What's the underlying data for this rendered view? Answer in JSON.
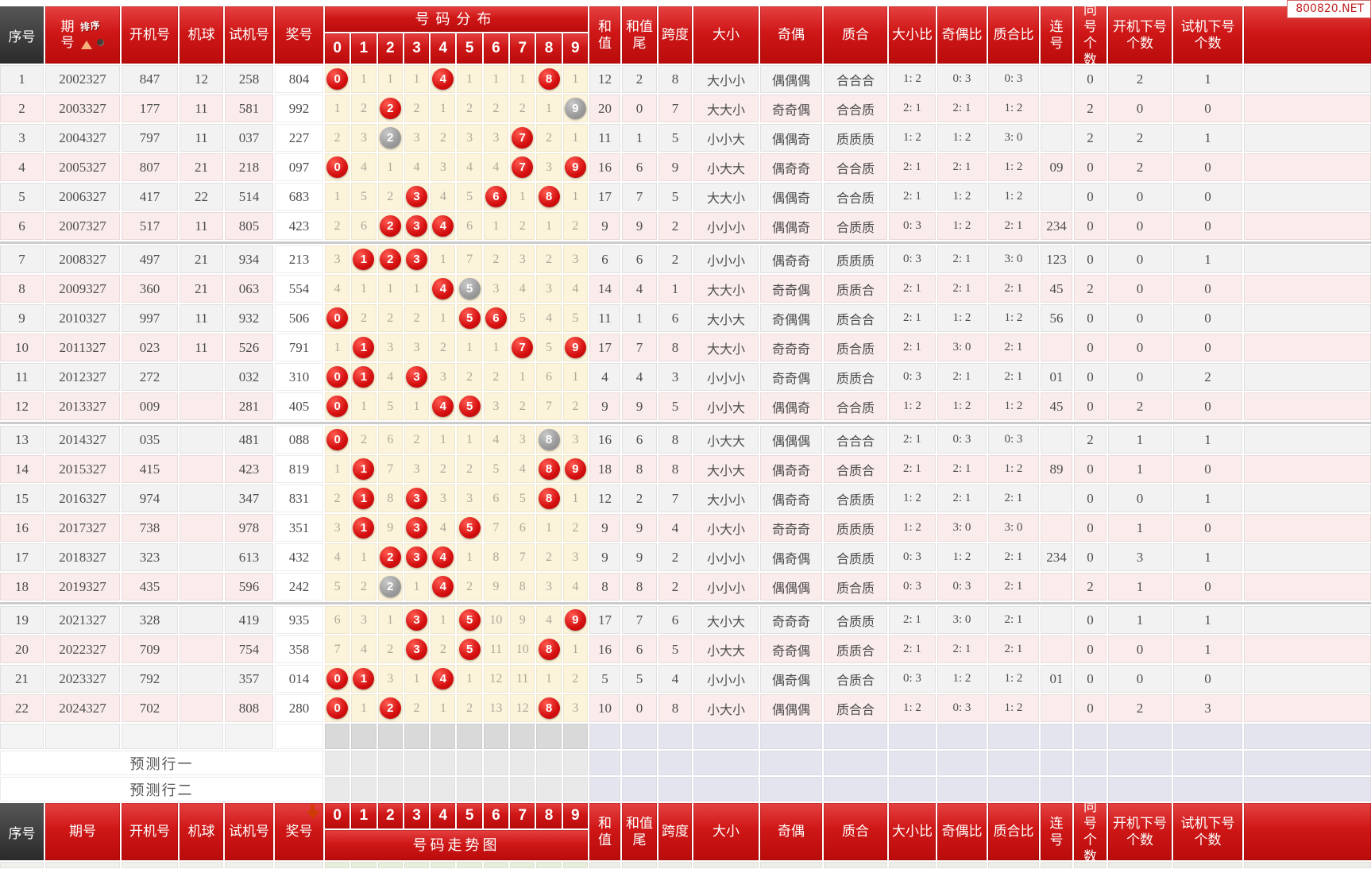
{
  "watermark": "800820.NET",
  "columns": {
    "index": "序号",
    "period": "期号",
    "sort_label": "排序",
    "boot": "开机号",
    "ball": "机球",
    "test": "试机号",
    "prize": "奖号",
    "dist_title": "号码分布",
    "dist_digits": [
      "0",
      "1",
      "2",
      "3",
      "4",
      "5",
      "6",
      "7",
      "8",
      "9"
    ],
    "sum": "和值",
    "sum_tail": "和值尾",
    "span": "跨度",
    "big_small": "大小",
    "odd_even": "奇偶",
    "prime_comp": "质合",
    "bs_ratio": "大小比",
    "oe_ratio": "奇偶比",
    "pc_ratio": "质合比",
    "consecutive": "连号",
    "same_count": "同号个数",
    "boot_next_count": "开机下号个数",
    "test_next_count": "试机下号个数",
    "footer_dist_title": "号码走势图"
  },
  "prediction_rows": [
    "预测行一",
    "预测行二"
  ],
  "rows": [
    {
      "idx": "1",
      "period": "2002327",
      "boot": "847",
      "ball": "12",
      "test": "258",
      "prize": "804",
      "dist": [
        "0",
        "1",
        "1",
        "1",
        "4",
        "1",
        "1",
        "1",
        "8",
        "1"
      ],
      "marks": [
        1,
        0,
        0,
        0,
        1,
        0,
        0,
        0,
        1,
        0
      ],
      "sum": "12",
      "tail": "2",
      "span": "8",
      "bs": "大小小",
      "oe": "偶偶偶",
      "pc": "合合合",
      "bsr": "1: 2",
      "oer": "0: 3",
      "pcr": "0: 3",
      "consec": "",
      "same": "0",
      "bootn": "2",
      "testn": "1"
    },
    {
      "idx": "2",
      "period": "2003327",
      "boot": "177",
      "ball": "11",
      "test": "581",
      "prize": "992",
      "dist": [
        "1",
        "2",
        "2",
        "2",
        "1",
        "2",
        "2",
        "2",
        "1",
        "9"
      ],
      "marks": [
        0,
        0,
        1,
        0,
        0,
        0,
        0,
        0,
        0,
        2
      ],
      "sum": "20",
      "tail": "0",
      "span": "7",
      "bs": "大大小",
      "oe": "奇奇偶",
      "pc": "合合质",
      "bsr": "2: 1",
      "oer": "2: 1",
      "pcr": "1: 2",
      "consec": "",
      "same": "2",
      "bootn": "0",
      "testn": "0"
    },
    {
      "idx": "3",
      "period": "2004327",
      "boot": "797",
      "ball": "11",
      "test": "037",
      "prize": "227",
      "dist": [
        "2",
        "3",
        "2",
        "3",
        "2",
        "3",
        "3",
        "7",
        "2",
        "1"
      ],
      "marks": [
        0,
        0,
        2,
        0,
        0,
        0,
        0,
        1,
        0,
        0
      ],
      "sum": "11",
      "tail": "1",
      "span": "5",
      "bs": "小小大",
      "oe": "偶偶奇",
      "pc": "质质质",
      "bsr": "1: 2",
      "oer": "1: 2",
      "pcr": "3: 0",
      "consec": "",
      "same": "2",
      "bootn": "2",
      "testn": "1"
    },
    {
      "idx": "4",
      "period": "2005327",
      "boot": "807",
      "ball": "21",
      "test": "218",
      "prize": "097",
      "dist": [
        "0",
        "4",
        "1",
        "4",
        "3",
        "4",
        "4",
        "7",
        "3",
        "9"
      ],
      "marks": [
        1,
        0,
        0,
        0,
        0,
        0,
        0,
        1,
        0,
        1
      ],
      "sum": "16",
      "tail": "6",
      "span": "9",
      "bs": "小大大",
      "oe": "偶奇奇",
      "pc": "合合质",
      "bsr": "2: 1",
      "oer": "2: 1",
      "pcr": "1: 2",
      "consec": "09",
      "same": "0",
      "bootn": "2",
      "testn": "0"
    },
    {
      "idx": "5",
      "period": "2006327",
      "boot": "417",
      "ball": "22",
      "test": "514",
      "prize": "683",
      "dist": [
        "1",
        "5",
        "2",
        "3",
        "4",
        "5",
        "6",
        "1",
        "8",
        "1"
      ],
      "marks": [
        0,
        0,
        0,
        1,
        0,
        0,
        1,
        0,
        1,
        0
      ],
      "sum": "17",
      "tail": "7",
      "span": "5",
      "bs": "大大小",
      "oe": "偶偶奇",
      "pc": "合合质",
      "bsr": "2: 1",
      "oer": "1: 2",
      "pcr": "1: 2",
      "consec": "",
      "same": "0",
      "bootn": "0",
      "testn": "0"
    },
    {
      "idx": "6",
      "period": "2007327",
      "boot": "517",
      "ball": "11",
      "test": "805",
      "prize": "423",
      "dist": [
        "2",
        "6",
        "2",
        "3",
        "4",
        "6",
        "1",
        "2",
        "1",
        "2"
      ],
      "marks": [
        0,
        0,
        1,
        1,
        1,
        0,
        0,
        0,
        0,
        0
      ],
      "sum": "9",
      "tail": "9",
      "span": "2",
      "bs": "小小小",
      "oe": "偶偶奇",
      "pc": "合质质",
      "bsr": "0: 3",
      "oer": "1: 2",
      "pcr": "2: 1",
      "consec": "234",
      "same": "0",
      "bootn": "0",
      "testn": "0"
    },
    {
      "idx": "7",
      "period": "2008327",
      "boot": "497",
      "ball": "21",
      "test": "934",
      "prize": "213",
      "dist": [
        "3",
        "1",
        "2",
        "3",
        "1",
        "7",
        "2",
        "3",
        "2",
        "3"
      ],
      "marks": [
        0,
        1,
        1,
        1,
        0,
        0,
        0,
        0,
        0,
        0
      ],
      "sum": "6",
      "tail": "6",
      "span": "2",
      "bs": "小小小",
      "oe": "偶奇奇",
      "pc": "质质质",
      "bsr": "0: 3",
      "oer": "2: 1",
      "pcr": "3: 0",
      "consec": "123",
      "same": "0",
      "bootn": "0",
      "testn": "1"
    },
    {
      "idx": "8",
      "period": "2009327",
      "boot": "360",
      "ball": "21",
      "test": "063",
      "prize": "554",
      "dist": [
        "4",
        "1",
        "1",
        "1",
        "4",
        "5",
        "3",
        "4",
        "3",
        "4"
      ],
      "marks": [
        0,
        0,
        0,
        0,
        1,
        2,
        0,
        0,
        0,
        0
      ],
      "sum": "14",
      "tail": "4",
      "span": "1",
      "bs": "大大小",
      "oe": "奇奇偶",
      "pc": "质质合",
      "bsr": "2: 1",
      "oer": "2: 1",
      "pcr": "2: 1",
      "consec": "45",
      "same": "2",
      "bootn": "0",
      "testn": "0"
    },
    {
      "idx": "9",
      "period": "2010327",
      "boot": "997",
      "ball": "11",
      "test": "932",
      "prize": "506",
      "dist": [
        "0",
        "2",
        "2",
        "2",
        "1",
        "5",
        "6",
        "5",
        "4",
        "5"
      ],
      "marks": [
        1,
        0,
        0,
        0,
        0,
        1,
        1,
        0,
        0,
        0
      ],
      "sum": "11",
      "tail": "1",
      "span": "6",
      "bs": "大小大",
      "oe": "奇偶偶",
      "pc": "质合合",
      "bsr": "2: 1",
      "oer": "1: 2",
      "pcr": "1: 2",
      "consec": "56",
      "same": "0",
      "bootn": "0",
      "testn": "0"
    },
    {
      "idx": "10",
      "period": "2011327",
      "boot": "023",
      "ball": "11",
      "test": "526",
      "prize": "791",
      "dist": [
        "1",
        "1",
        "3",
        "3",
        "2",
        "1",
        "1",
        "7",
        "5",
        "9"
      ],
      "marks": [
        0,
        1,
        0,
        0,
        0,
        0,
        0,
        1,
        0,
        1
      ],
      "sum": "17",
      "tail": "7",
      "span": "8",
      "bs": "大大小",
      "oe": "奇奇奇",
      "pc": "质合质",
      "bsr": "2: 1",
      "oer": "3: 0",
      "pcr": "2: 1",
      "consec": "",
      "same": "0",
      "bootn": "0",
      "testn": "0"
    },
    {
      "idx": "11",
      "period": "2012327",
      "boot": "272",
      "ball": "",
      "test": "032",
      "prize": "310",
      "dist": [
        "0",
        "1",
        "4",
        "3",
        "3",
        "2",
        "2",
        "1",
        "6",
        "1"
      ],
      "marks": [
        1,
        1,
        0,
        1,
        0,
        0,
        0,
        0,
        0,
        0
      ],
      "sum": "4",
      "tail": "4",
      "span": "3",
      "bs": "小小小",
      "oe": "奇奇偶",
      "pc": "质质合",
      "bsr": "0: 3",
      "oer": "2: 1",
      "pcr": "2: 1",
      "consec": "01",
      "same": "0",
      "bootn": "0",
      "testn": "2"
    },
    {
      "idx": "12",
      "period": "2013327",
      "boot": "009",
      "ball": "",
      "test": "281",
      "prize": "405",
      "dist": [
        "0",
        "1",
        "5",
        "1",
        "4",
        "5",
        "3",
        "2",
        "7",
        "2"
      ],
      "marks": [
        1,
        0,
        0,
        0,
        1,
        1,
        0,
        0,
        0,
        0
      ],
      "sum": "9",
      "tail": "9",
      "span": "5",
      "bs": "小小大",
      "oe": "偶偶奇",
      "pc": "合合质",
      "bsr": "1: 2",
      "oer": "1: 2",
      "pcr": "1: 2",
      "consec": "45",
      "same": "0",
      "bootn": "2",
      "testn": "0"
    },
    {
      "idx": "13",
      "period": "2014327",
      "boot": "035",
      "ball": "",
      "test": "481",
      "prize": "088",
      "dist": [
        "0",
        "2",
        "6",
        "2",
        "1",
        "1",
        "4",
        "3",
        "8",
        "3"
      ],
      "marks": [
        1,
        0,
        0,
        0,
        0,
        0,
        0,
        0,
        2,
        0
      ],
      "sum": "16",
      "tail": "6",
      "span": "8",
      "bs": "小大大",
      "oe": "偶偶偶",
      "pc": "合合合",
      "bsr": "2: 1",
      "oer": "0: 3",
      "pcr": "0: 3",
      "consec": "",
      "same": "2",
      "bootn": "1",
      "testn": "1"
    },
    {
      "idx": "14",
      "period": "2015327",
      "boot": "415",
      "ball": "",
      "test": "423",
      "prize": "819",
      "dist": [
        "1",
        "1",
        "7",
        "3",
        "2",
        "2",
        "5",
        "4",
        "8",
        "9"
      ],
      "marks": [
        0,
        1,
        0,
        0,
        0,
        0,
        0,
        0,
        1,
        1
      ],
      "sum": "18",
      "tail": "8",
      "span": "8",
      "bs": "大小大",
      "oe": "偶奇奇",
      "pc": "合质合",
      "bsr": "2: 1",
      "oer": "2: 1",
      "pcr": "1: 2",
      "consec": "89",
      "same": "0",
      "bootn": "1",
      "testn": "0"
    },
    {
      "idx": "15",
      "period": "2016327",
      "boot": "974",
      "ball": "",
      "test": "347",
      "prize": "831",
      "dist": [
        "2",
        "1",
        "8",
        "3",
        "3",
        "3",
        "6",
        "5",
        "8",
        "1"
      ],
      "marks": [
        0,
        1,
        0,
        1,
        0,
        0,
        0,
        0,
        1,
        0
      ],
      "sum": "12",
      "tail": "2",
      "span": "7",
      "bs": "大小小",
      "oe": "偶奇奇",
      "pc": "合质质",
      "bsr": "1: 2",
      "oer": "2: 1",
      "pcr": "2: 1",
      "consec": "",
      "same": "0",
      "bootn": "0",
      "testn": "1"
    },
    {
      "idx": "16",
      "period": "2017327",
      "boot": "738",
      "ball": "",
      "test": "978",
      "prize": "351",
      "dist": [
        "3",
        "1",
        "9",
        "3",
        "4",
        "5",
        "7",
        "6",
        "1",
        "2"
      ],
      "marks": [
        0,
        1,
        0,
        1,
        0,
        1,
        0,
        0,
        0,
        0
      ],
      "sum": "9",
      "tail": "9",
      "span": "4",
      "bs": "小大小",
      "oe": "奇奇奇",
      "pc": "质质质",
      "bsr": "1: 2",
      "oer": "3: 0",
      "pcr": "3: 0",
      "consec": "",
      "same": "0",
      "bootn": "1",
      "testn": "0"
    },
    {
      "idx": "17",
      "period": "2018327",
      "boot": "323",
      "ball": "",
      "test": "613",
      "prize": "432",
      "dist": [
        "4",
        "1",
        "2",
        "3",
        "4",
        "1",
        "8",
        "7",
        "2",
        "3"
      ],
      "marks": [
        0,
        0,
        1,
        1,
        1,
        0,
        0,
        0,
        0,
        0
      ],
      "sum": "9",
      "tail": "9",
      "span": "2",
      "bs": "小小小",
      "oe": "偶奇偶",
      "pc": "合质质",
      "bsr": "0: 3",
      "oer": "1: 2",
      "pcr": "2: 1",
      "consec": "234",
      "same": "0",
      "bootn": "3",
      "testn": "1"
    },
    {
      "idx": "18",
      "period": "2019327",
      "boot": "435",
      "ball": "",
      "test": "596",
      "prize": "242",
      "dist": [
        "5",
        "2",
        "2",
        "1",
        "4",
        "2",
        "9",
        "8",
        "3",
        "4"
      ],
      "marks": [
        0,
        0,
        2,
        0,
        1,
        0,
        0,
        0,
        0,
        0
      ],
      "sum": "8",
      "tail": "8",
      "span": "2",
      "bs": "小小小",
      "oe": "偶偶偶",
      "pc": "质合质",
      "bsr": "0: 3",
      "oer": "0: 3",
      "pcr": "2: 1",
      "consec": "",
      "same": "2",
      "bootn": "1",
      "testn": "0"
    },
    {
      "idx": "19",
      "period": "2021327",
      "boot": "328",
      "ball": "",
      "test": "419",
      "prize": "935",
      "dist": [
        "6",
        "3",
        "1",
        "3",
        "1",
        "5",
        "10",
        "9",
        "4",
        "9"
      ],
      "marks": [
        0,
        0,
        0,
        1,
        0,
        1,
        0,
        0,
        0,
        1
      ],
      "sum": "17",
      "tail": "7",
      "span": "6",
      "bs": "大小大",
      "oe": "奇奇奇",
      "pc": "合质质",
      "bsr": "2: 1",
      "oer": "3: 0",
      "pcr": "2: 1",
      "consec": "",
      "same": "0",
      "bootn": "1",
      "testn": "1"
    },
    {
      "idx": "20",
      "period": "2022327",
      "boot": "709",
      "ball": "",
      "test": "754",
      "prize": "358",
      "dist": [
        "7",
        "4",
        "2",
        "3",
        "2",
        "5",
        "11",
        "10",
        "8",
        "1"
      ],
      "marks": [
        0,
        0,
        0,
        1,
        0,
        1,
        0,
        0,
        1,
        0
      ],
      "sum": "16",
      "tail": "6",
      "span": "5",
      "bs": "小大大",
      "oe": "奇奇偶",
      "pc": "质质合",
      "bsr": "2: 1",
      "oer": "2: 1",
      "pcr": "2: 1",
      "consec": "",
      "same": "0",
      "bootn": "0",
      "testn": "1"
    },
    {
      "idx": "21",
      "period": "2023327",
      "boot": "792",
      "ball": "",
      "test": "357",
      "prize": "014",
      "dist": [
        "0",
        "1",
        "3",
        "1",
        "4",
        "1",
        "12",
        "11",
        "1",
        "2"
      ],
      "marks": [
        1,
        1,
        0,
        0,
        1,
        0,
        0,
        0,
        0,
        0
      ],
      "sum": "5",
      "tail": "5",
      "span": "4",
      "bs": "小小小",
      "oe": "偶奇偶",
      "pc": "合质合",
      "bsr": "0: 3",
      "oer": "1: 2",
      "pcr": "1: 2",
      "consec": "01",
      "same": "0",
      "bootn": "0",
      "testn": "0"
    },
    {
      "idx": "22",
      "period": "2024327",
      "boot": "702",
      "ball": "",
      "test": "808",
      "prize": "280",
      "dist": [
        "0",
        "1",
        "2",
        "2",
        "1",
        "2",
        "13",
        "12",
        "8",
        "3"
      ],
      "marks": [
        1,
        0,
        1,
        0,
        0,
        0,
        0,
        0,
        1,
        0
      ],
      "sum": "10",
      "tail": "0",
      "span": "8",
      "bs": "小大小",
      "oe": "偶偶偶",
      "pc": "质合合",
      "bsr": "1: 2",
      "oer": "0: 3",
      "pcr": "1: 2",
      "consec": "",
      "same": "0",
      "bootn": "2",
      "testn": "3"
    }
  ]
}
